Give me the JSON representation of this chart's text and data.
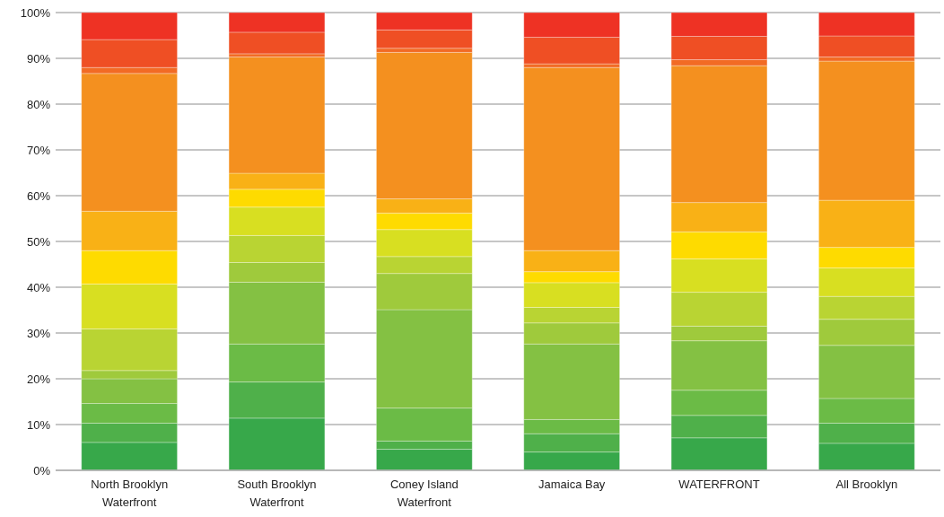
{
  "chart_data": {
    "type": "bar",
    "stacked": true,
    "grid": "y",
    "categories": [
      "North Brooklyn Waterfront",
      "South Brooklyn Waterfront",
      "Coney Island Waterfront",
      "Jamaica Bay",
      "WATERFRONT",
      "All Brooklyn"
    ],
    "ylim": [
      0,
      100
    ],
    "yticks": [
      {
        "value": 0,
        "label": "0%"
      },
      {
        "value": 10,
        "label": "10%"
      },
      {
        "value": 20,
        "label": "20%"
      },
      {
        "value": 30,
        "label": "30%"
      },
      {
        "value": 40,
        "label": "40%"
      },
      {
        "value": 50,
        "label": "50%"
      },
      {
        "value": 60,
        "label": "60%"
      },
      {
        "value": 70,
        "label": "70%"
      },
      {
        "value": 80,
        "label": "80%"
      },
      {
        "value": 90,
        "label": "90%"
      },
      {
        "value": 100,
        "label": "100%"
      }
    ],
    "series": [
      {
        "color": "#37a84a",
        "values": [
          6.1,
          11.4,
          4.6,
          4.0,
          7.1,
          5.9
        ]
      },
      {
        "color": "#4fb04a",
        "values": [
          4.2,
          7.9,
          1.8,
          4.0,
          4.9,
          4.4
        ]
      },
      {
        "color": "#6bbb46",
        "values": [
          4.3,
          8.3,
          7.2,
          3.1,
          5.5,
          5.4
        ]
      },
      {
        "color": "#84c143",
        "values": [
          5.4,
          13.5,
          21.5,
          16.5,
          10.8,
          11.6
        ]
      },
      {
        "color": "#9fca3c",
        "values": [
          1.8,
          4.3,
          7.9,
          4.6,
          3.2,
          5.7
        ]
      },
      {
        "color": "#b9d433",
        "values": [
          9.1,
          5.9,
          3.7,
          3.4,
          7.4,
          5.0
        ]
      },
      {
        "color": "#d8df21",
        "values": [
          9.8,
          6.2,
          5.9,
          5.4,
          7.3,
          6.2
        ]
      },
      {
        "color": "#fedb00",
        "values": [
          7.3,
          3.9,
          3.6,
          2.4,
          5.9,
          4.5
        ]
      },
      {
        "color": "#f9b116",
        "values": [
          8.6,
          3.5,
          3.1,
          4.6,
          6.4,
          10.3
        ]
      },
      {
        "color": "#f4901f",
        "values": [
          30.1,
          25.4,
          32.0,
          40.0,
          29.9,
          30.4
        ]
      },
      {
        "color": "#f26b24",
        "values": [
          1.3,
          0.7,
          0.9,
          0.8,
          1.3,
          0.9
        ]
      },
      {
        "color": "#ef4f24",
        "values": [
          6.1,
          4.7,
          4.0,
          5.8,
          5.1,
          4.6
        ]
      },
      {
        "color": "#ee3224",
        "values": [
          5.9,
          4.3,
          3.8,
          5.4,
          5.2,
          5.1
        ]
      }
    ]
  }
}
